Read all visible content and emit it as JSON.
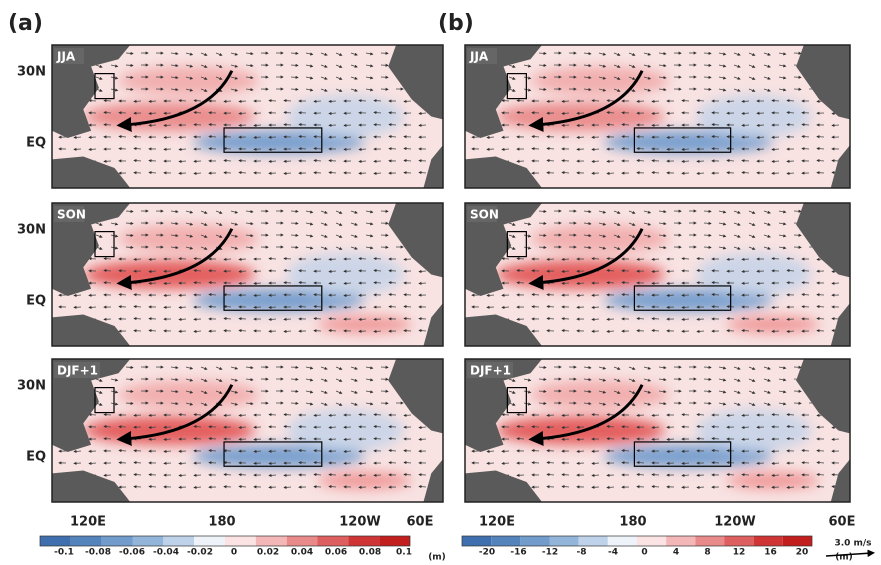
{
  "figure": {
    "panel_labels": [
      "(a)",
      "(b)"
    ],
    "seasons": [
      "JJA",
      "SON",
      "DJF+1"
    ],
    "lat_labels": [
      "30N",
      "EQ"
    ],
    "lon_labels": [
      "120E",
      "180",
      "120W",
      "60E"
    ],
    "colorbars": [
      {
        "ticks": [
          "-0.1",
          "-0.08",
          "-0.06",
          "-0.04",
          "-0.02",
          "0",
          "0.02",
          "0.04",
          "0.06",
          "0.08",
          "0.1"
        ],
        "unit": "(m)"
      },
      {
        "ticks": [
          "-20",
          "-16",
          "-12",
          "-8",
          "-4",
          "0",
          "4",
          "8",
          "12",
          "16",
          "20"
        ],
        "unit": "(m)"
      }
    ],
    "vector_scale": "3.0 m/s"
  }
}
